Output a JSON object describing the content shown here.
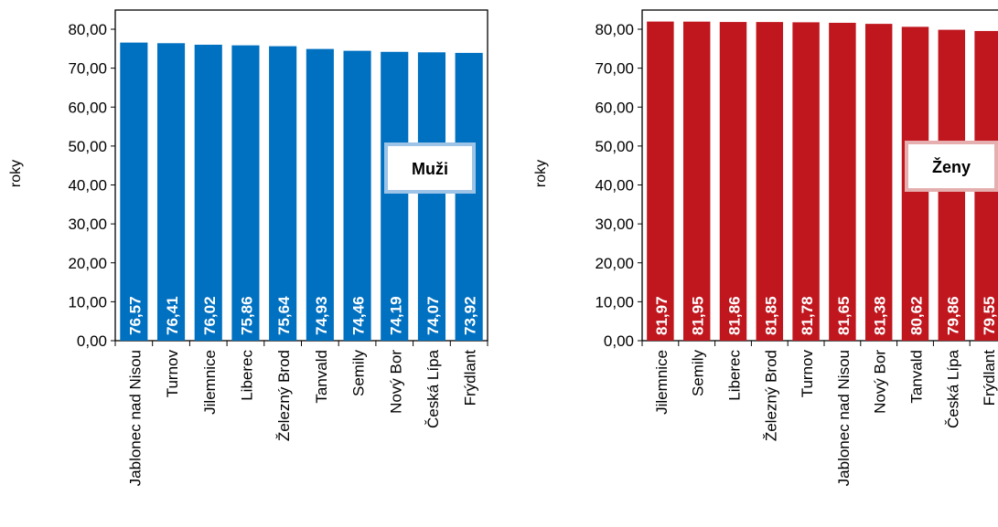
{
  "chart_data": [
    {
      "type": "bar",
      "title": "",
      "legend_box": "Muži",
      "ylabel": "roky",
      "xlabel": "",
      "ylim": [
        0,
        80
      ],
      "y_ticks": [
        "0,00",
        "10,00",
        "20,00",
        "30,00",
        "40,00",
        "50,00",
        "60,00",
        "70,00",
        "80,00"
      ],
      "categories": [
        "Jablonec nad Nisou",
        "Turnov",
        "Jilemnice",
        "Liberec",
        "Železný Brod",
        "Tanvald",
        "Semily",
        "Nový Bor",
        "Česká Lípa",
        "Frýdlant"
      ],
      "values": [
        76.57,
        76.41,
        76.02,
        75.86,
        75.64,
        74.93,
        74.46,
        74.19,
        74.07,
        73.92
      ],
      "value_labels": [
        "76,57",
        "76,41",
        "76,02",
        "75,86",
        "75,64",
        "74,93",
        "74,46",
        "74,19",
        "74,07",
        "73,92"
      ],
      "grid": false,
      "colors": {
        "bar": "#0070C0",
        "box_border": "#9DC3E6"
      }
    },
    {
      "type": "bar",
      "title": "",
      "legend_box": "Ženy",
      "ylabel": "roky",
      "xlabel": "",
      "ylim": [
        0,
        80
      ],
      "y_ticks": [
        "0,00",
        "10,00",
        "20,00",
        "30,00",
        "40,00",
        "50,00",
        "60,00",
        "70,00",
        "80,00"
      ],
      "categories": [
        "Jilemnice",
        "Semily",
        "Liberec",
        "Železný Brod",
        "Turnov",
        "Jablonec nad Nisou",
        "Nový Bor",
        "Tanvald",
        "Česká Lípa",
        "Frýdlant"
      ],
      "values": [
        81.97,
        81.95,
        81.86,
        81.85,
        81.78,
        81.65,
        81.38,
        80.62,
        79.86,
        79.55
      ],
      "value_labels": [
        "81,97",
        "81,95",
        "81,86",
        "81,85",
        "81,78",
        "81,65",
        "81,38",
        "80,62",
        "79,86",
        "79,55"
      ],
      "grid": false,
      "colors": {
        "bar": "#C0171F",
        "box_border": "#E6AFAF"
      }
    }
  ]
}
